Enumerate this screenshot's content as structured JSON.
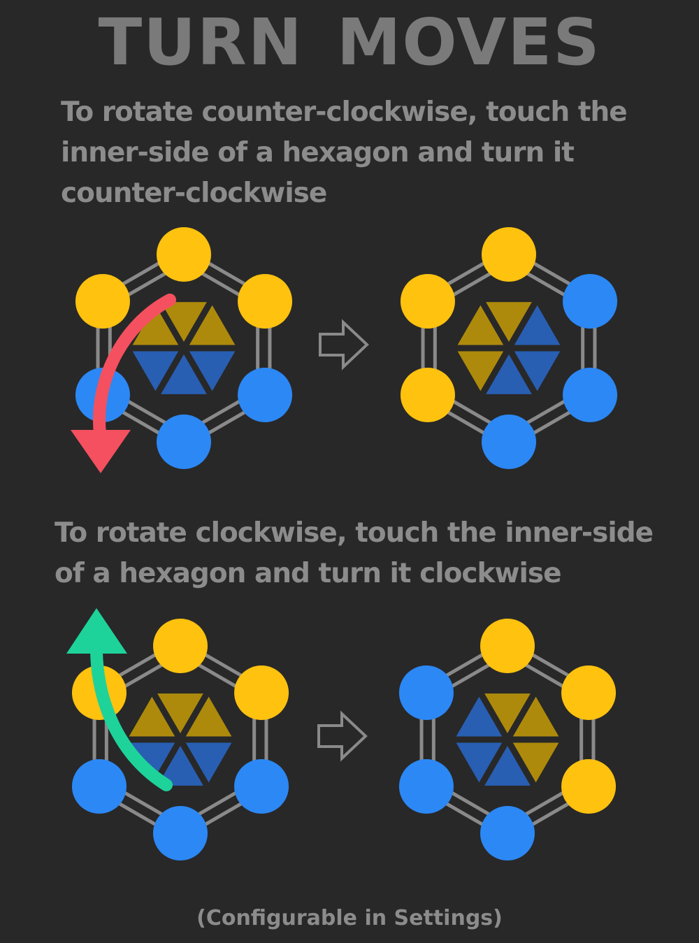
{
  "title": "TURN MOVES",
  "instructions": {
    "counter_clockwise": "To rotate counter-clockwise, touch the inner-side of a hexagon and turn it counter-clockwise",
    "clockwise": "To rotate clockwise, touch the inner-side of a hexagon and turn it clockwise"
  },
  "footer": "(Configurable in Settings)",
  "colors": {
    "background": "#282828",
    "yellow": "#fec20f",
    "blue": "#2c88f5",
    "dark_yellow": "#ad8a0b",
    "dark_blue": "#285fb3",
    "frame": "#8a8a8a",
    "ccw_arrow": "#f5505f",
    "cw_arrow": "#1ed39a"
  },
  "icons": {
    "ccw_gesture": "curved-arrow-down-icon",
    "cw_gesture": "curved-arrow-up-icon",
    "transition": "right-arrow-outline-icon"
  },
  "states": {
    "ccw_before": {
      "nodes": [
        "yellow",
        "yellow",
        "blue",
        "blue",
        "blue",
        "yellow"
      ],
      "center": [
        "yellow",
        "yellow",
        "blue",
        "blue",
        "blue",
        "yellow"
      ]
    },
    "ccw_after": {
      "nodes": [
        "yellow",
        "blue",
        "blue",
        "blue",
        "yellow",
        "yellow"
      ],
      "center": [
        "yellow",
        "blue",
        "blue",
        "blue",
        "yellow",
        "yellow"
      ]
    },
    "cw_before": {
      "nodes": [
        "yellow",
        "yellow",
        "blue",
        "blue",
        "blue",
        "yellow"
      ],
      "center": [
        "yellow",
        "yellow",
        "blue",
        "blue",
        "blue",
        "yellow"
      ]
    },
    "cw_after": {
      "nodes": [
        "yellow",
        "yellow",
        "yellow",
        "blue",
        "blue",
        "blue"
      ],
      "center": [
        "yellow",
        "yellow",
        "yellow",
        "blue",
        "blue",
        "blue"
      ]
    }
  }
}
